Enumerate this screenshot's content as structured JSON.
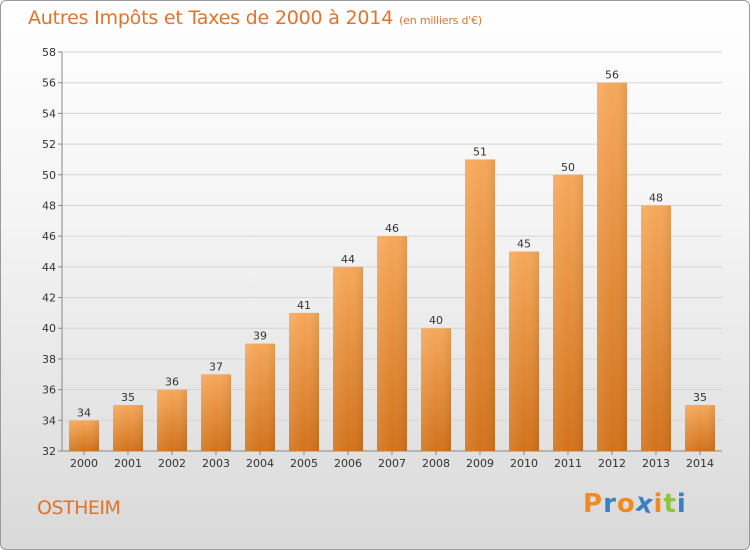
{
  "header": {
    "title": "Autres Impôts et Taxes de 2000 à 2014",
    "subtitle": "(en milliers d'€)"
  },
  "footer": {
    "commune": "OSTHEIM",
    "brand_letters": [
      "P",
      "r",
      "o",
      "x",
      "i",
      "t",
      "i"
    ],
    "brand_colors": [
      "#f08a24",
      "#3b7fc4",
      "#f08a24",
      "#3b7fc4",
      "#f08a24",
      "#8cc63f",
      "#3b7fc4"
    ]
  },
  "colors": {
    "bar_light": "#f6a85a",
    "bar_dark": "#d2731c",
    "title": "#e2742a",
    "grid": "#d4d4d4"
  },
  "chart_data": {
    "type": "bar",
    "categories": [
      "2000",
      "2001",
      "2002",
      "2003",
      "2004",
      "2005",
      "2006",
      "2007",
      "2008",
      "2009",
      "2010",
      "2011",
      "2012",
      "2013",
      "2014"
    ],
    "values": [
      34,
      35,
      36,
      37,
      39,
      41,
      44,
      46,
      40,
      51,
      45,
      50,
      56,
      48,
      35
    ],
    "title": "Autres Impôts et Taxes de 2000 à 2014",
    "ylim": [
      32,
      58
    ],
    "yticks": [
      32,
      34,
      36,
      38,
      40,
      42,
      44,
      46,
      48,
      50,
      52,
      54,
      56,
      58
    ],
    "grid": true
  }
}
